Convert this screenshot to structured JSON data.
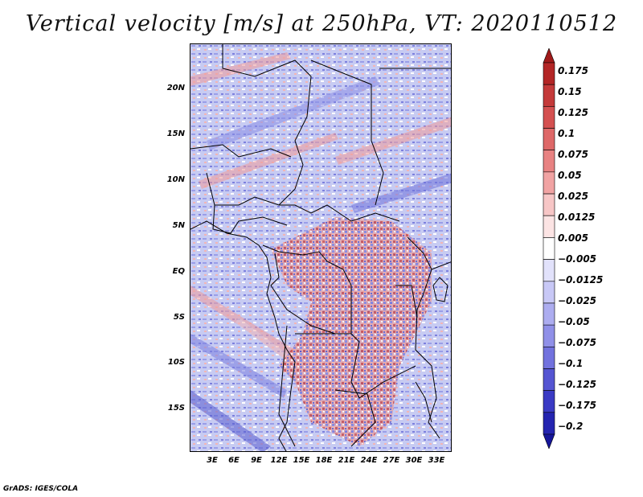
{
  "title": "Vertical velocity [m/s] at 250hPa, VT: 2020110512",
  "credit": "GrADS: IGES/COLA",
  "y_ticks": [
    "20N",
    "15N",
    "10N",
    "5N",
    "EQ",
    "5S",
    "10S",
    "15S"
  ],
  "x_ticks": [
    "3E",
    "6E",
    "9E",
    "12E",
    "15E",
    "18E",
    "21E",
    "24E",
    "27E",
    "30E",
    "33E"
  ],
  "colorbar": {
    "labels": [
      "0.175",
      "0.15",
      "0.125",
      "0.1",
      "0.075",
      "0.05",
      "0.025",
      "0.0125",
      "0.005",
      "−0.005",
      "−0.0125",
      "−0.025",
      "−0.05",
      "−0.075",
      "−0.1",
      "−0.125",
      "−0.175",
      "−0.2"
    ],
    "colors": [
      "#a01a1a",
      "#b32626",
      "#c43a3a",
      "#d45050",
      "#de6868",
      "#e88282",
      "#f1a3a3",
      "#f7c6c6",
      "#fce4e4",
      "#ffffff",
      "#e2e2fb",
      "#c8c8f6",
      "#adadf0",
      "#9090e8",
      "#7272de",
      "#5555d2",
      "#3a3ac4",
      "#2424b0",
      "#16169a"
    ]
  }
}
